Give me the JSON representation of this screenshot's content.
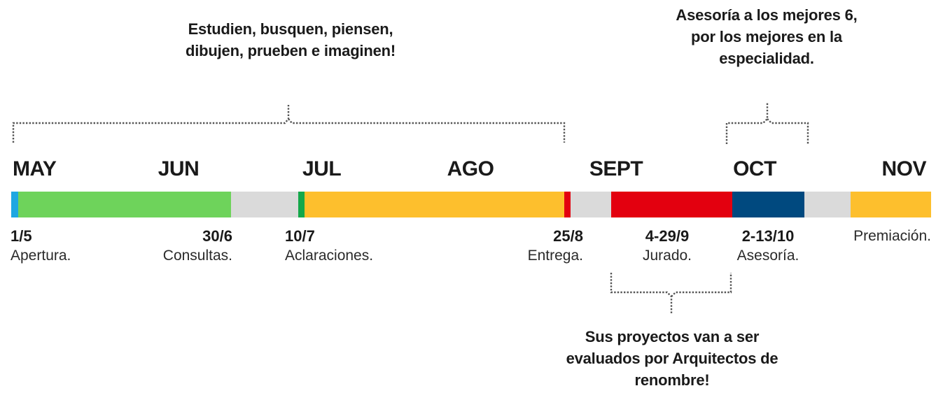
{
  "notes": {
    "top_left": "Estudien, busquen, piensen,\ndibujen, prueben e imaginen!",
    "top_right": "Asesoría a los mejores 6,\npor los mejores en la\nespecialidad.",
    "bottom": "Sus proyectos van a ser\nevaluados por Arquitectos de\nrenombre!"
  },
  "months": [
    "MAY",
    "JUN",
    "JUL",
    "AGO",
    "SEPT",
    "OCT",
    "NOV"
  ],
  "events": [
    {
      "date": "1/5",
      "label": "Apertura."
    },
    {
      "date": "30/6",
      "label": "Consultas."
    },
    {
      "date": "10/7",
      "label": "Aclaraciones."
    },
    {
      "date": "25/8",
      "label": "Entrega."
    },
    {
      "date": "4-29/9",
      "label": "Jurado."
    },
    {
      "date": "2-13/10",
      "label": "Asesoría."
    },
    {
      "date": "",
      "label": "Premiación."
    }
  ],
  "colors": {
    "track": "#dadada",
    "apertura": "#1ea7e1",
    "consultas": "#6ed35b",
    "aclaraciones": "#14a84a",
    "desarrollo": "#fdbf2d",
    "entrega": "#e3000f",
    "jurado": "#e3000f",
    "asesoria": "#00497f",
    "premiacion": "#fdbf2d",
    "bracket": "#555555"
  }
}
